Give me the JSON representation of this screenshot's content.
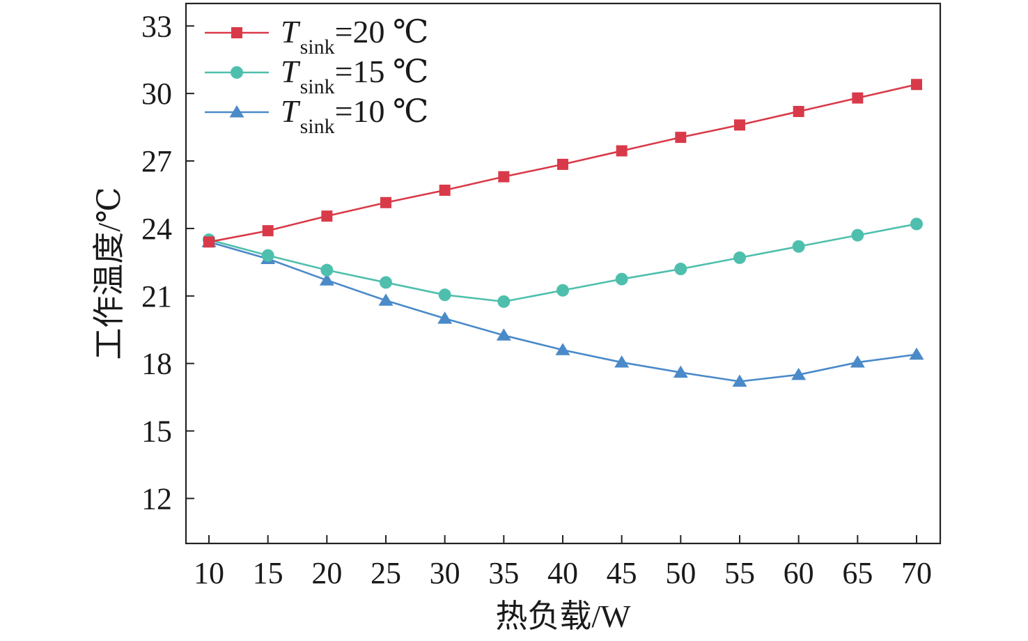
{
  "chart_data": {
    "type": "line",
    "title": "",
    "xlabel": "热负载/W",
    "ylabel": "工作温度/℃",
    "x": [
      10,
      15,
      20,
      25,
      30,
      35,
      40,
      45,
      50,
      55,
      60,
      65,
      70
    ],
    "xticks": [
      "10",
      "15",
      "20",
      "25",
      "30",
      "35",
      "40",
      "45",
      "50",
      "55",
      "60",
      "65",
      "70"
    ],
    "yticks": [
      "12",
      "15",
      "18",
      "21",
      "24",
      "27",
      "30",
      "33"
    ],
    "ylim": [
      10,
      34
    ],
    "grid": false,
    "legend_position": "top-left",
    "series": [
      {
        "name": "T_sink=20 ℃",
        "label_main": "T",
        "label_sub": "sink",
        "label_rest": "=20 ℃",
        "marker": "square",
        "color": "#d93a49",
        "values": [
          23.4,
          23.9,
          24.55,
          25.15,
          25.7,
          26.3,
          26.85,
          27.45,
          28.05,
          28.6,
          29.2,
          29.8,
          30.4
        ]
      },
      {
        "name": "T_sink=15 ℃",
        "label_main": "T",
        "label_sub": "sink",
        "label_rest": "=15 ℃",
        "marker": "circle",
        "color": "#4fbfad",
        "values": [
          23.5,
          22.8,
          22.15,
          21.6,
          21.05,
          20.75,
          21.25,
          21.75,
          22.2,
          22.7,
          23.2,
          23.7,
          24.2
        ]
      },
      {
        "name": "T_sink=10 ℃",
        "label_main": "T",
        "label_sub": "sink",
        "label_rest": "=10 ℃",
        "marker": "triangle",
        "color": "#4a8ac9",
        "values": [
          23.4,
          22.65,
          21.7,
          20.8,
          20.0,
          19.25,
          18.6,
          18.05,
          17.6,
          17.2,
          17.5,
          18.05,
          18.4
        ]
      }
    ]
  }
}
